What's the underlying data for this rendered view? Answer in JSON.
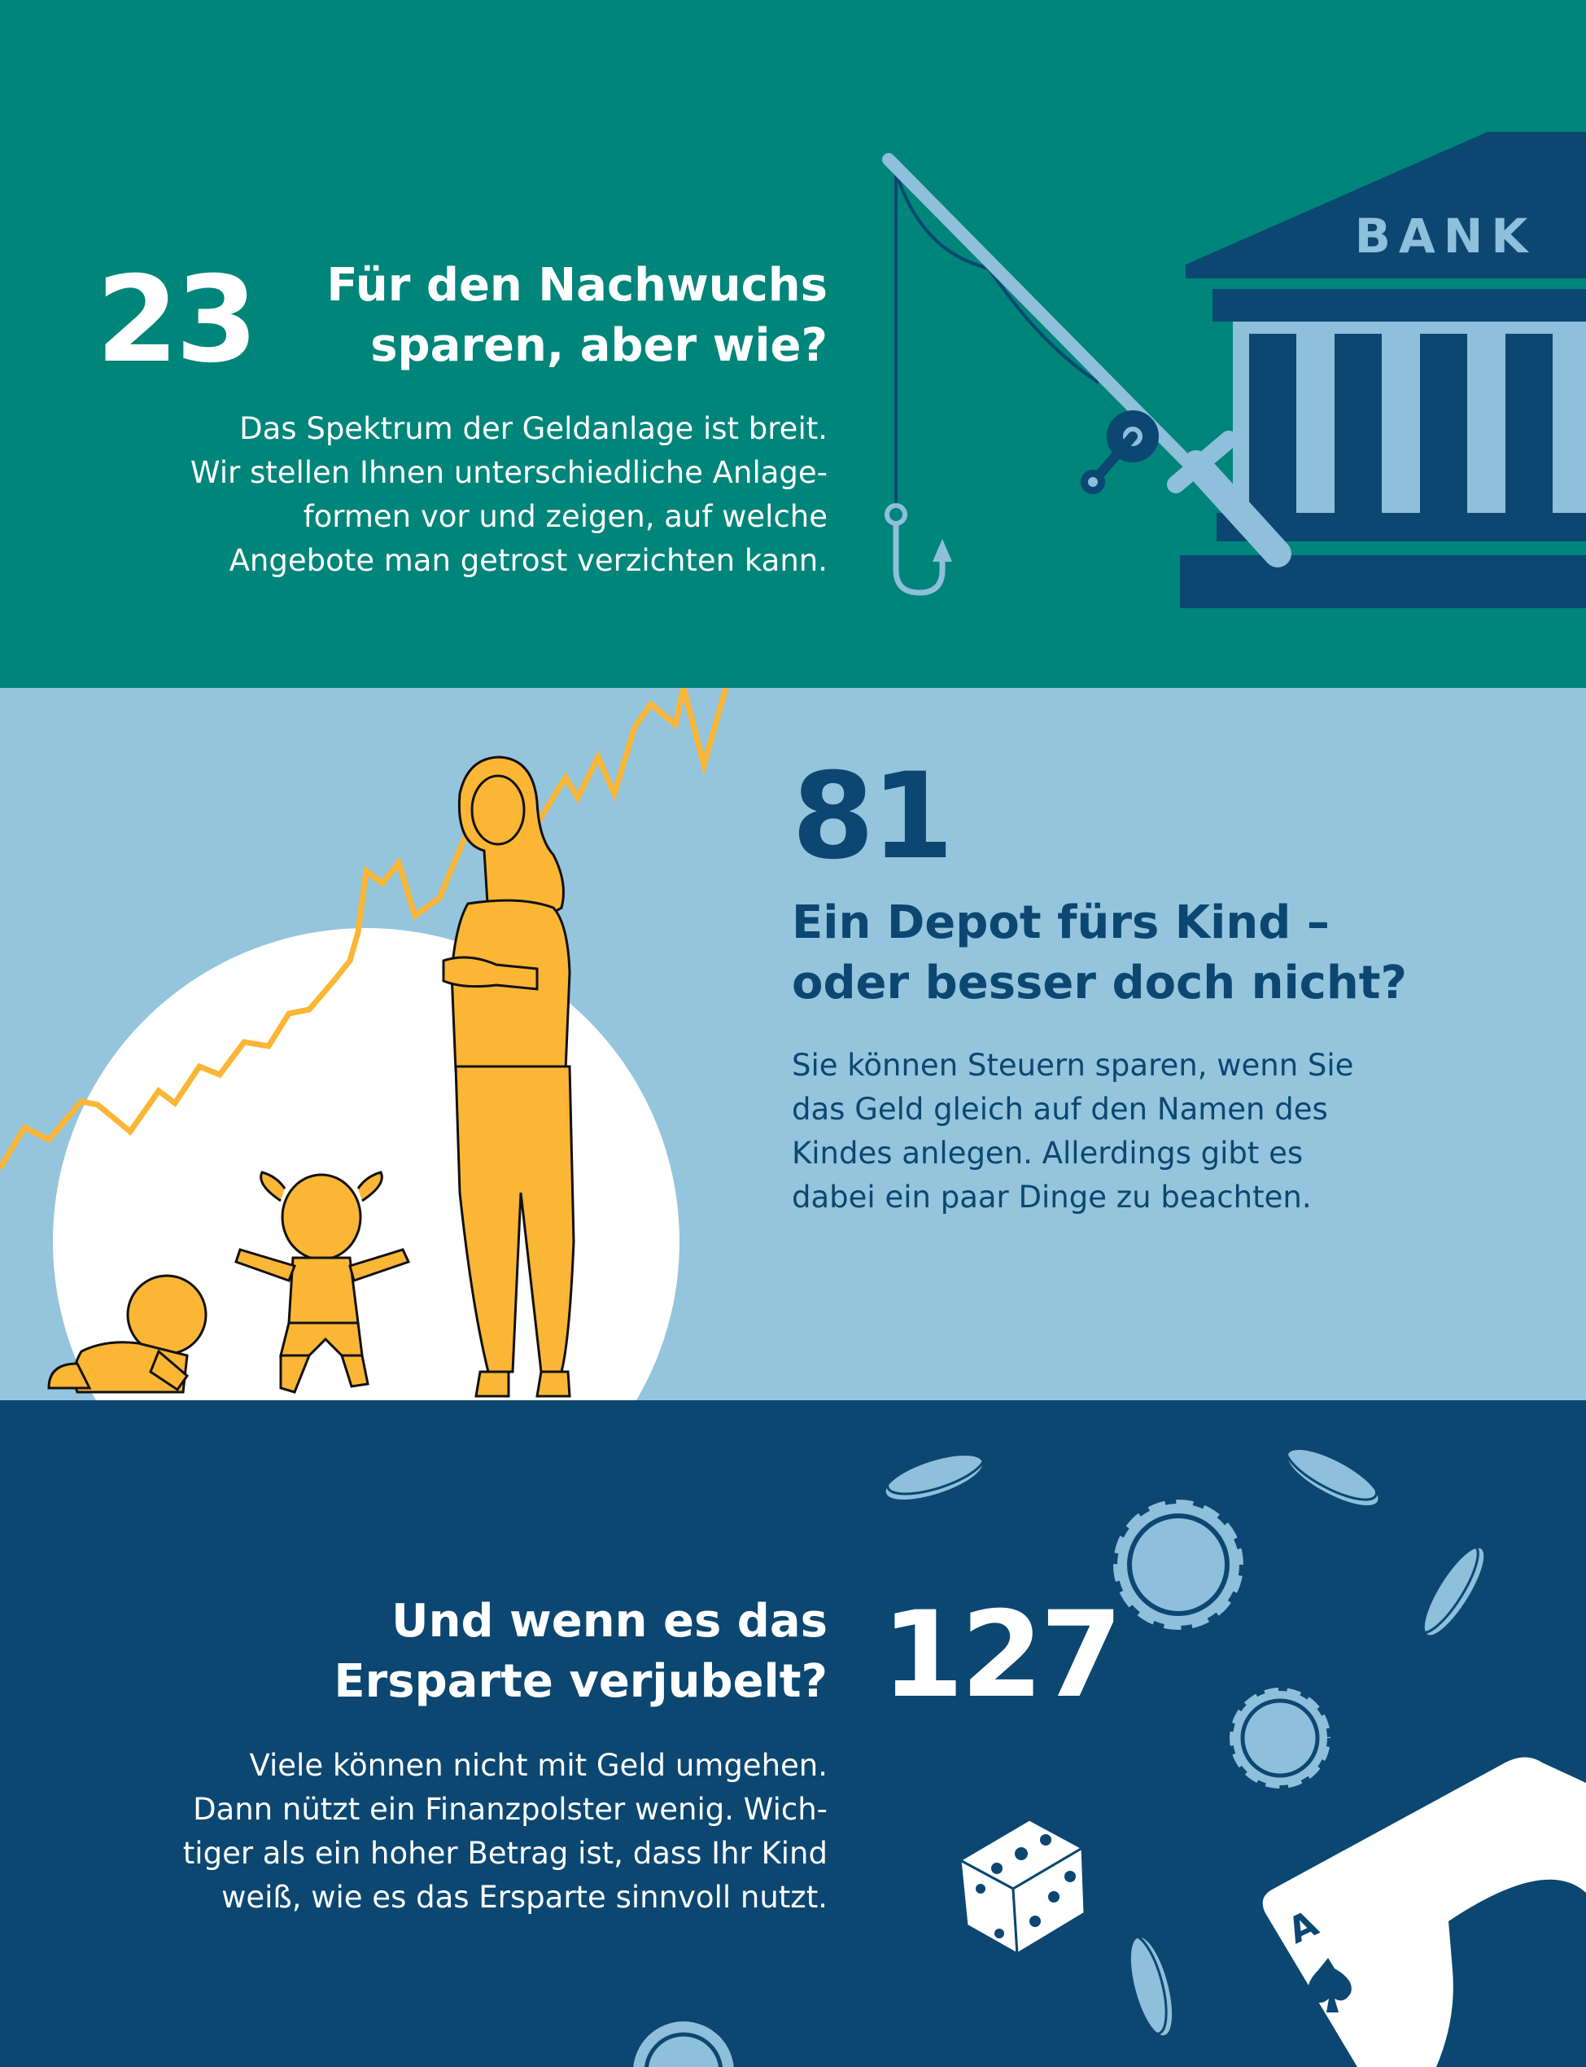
{
  "teaser_1": {
    "number": "23",
    "title_lines": [
      "Für den Nachwuchs",
      "sparen, aber wie?"
    ],
    "body_lines": [
      "Das Spektrum der Geldanlage ist breit.",
      "Wir stellen Ihnen unterschiedliche Anlage-",
      "formen vor und zeigen, auf welche",
      "Angebote man getrost verzichten kann."
    ],
    "bank_label": "BANK",
    "icons": [
      "fishing-rod-icon",
      "fish-hook-icon",
      "bank-building-icon"
    ]
  },
  "teaser_2": {
    "number": "81",
    "title_lines": [
      "Ein Depot fürs Kind –",
      "oder besser doch nicht?"
    ],
    "body_lines": [
      "Sie können Steuern sparen, wenn Sie",
      "das Geld gleich auf den Namen des",
      "Kindes anlegen. Allerdings gibt es",
      "dabei ein paar Dinge zu beachten."
    ],
    "icons": [
      "rising-chart-line-icon",
      "mother-icon",
      "girl-icon",
      "crawling-baby-icon"
    ]
  },
  "teaser_3": {
    "number": "127",
    "title_lines": [
      "Und wenn es das",
      "Ersparte verjubelt?"
    ],
    "body_lines": [
      "Viele können nicht mit Geld umgehen.",
      "Dann nützt ein Finanzpolster wenig. Wich-",
      "tiger als ein hoher Betrag ist, dass Ihr Kind",
      "weiß, wie es das Ersparte sinnvoll nutzt."
    ],
    "card_rank": "A",
    "icons": [
      "casino-chip-icon",
      "dice-icon",
      "ace-of-spades-card-icon"
    ]
  },
  "colors": {
    "teal": "#00857a",
    "light_blue": "#94c5dc",
    "navy": "#0b4771",
    "yellow": "#fbb636",
    "pale_blue": "#8ebfdb"
  }
}
